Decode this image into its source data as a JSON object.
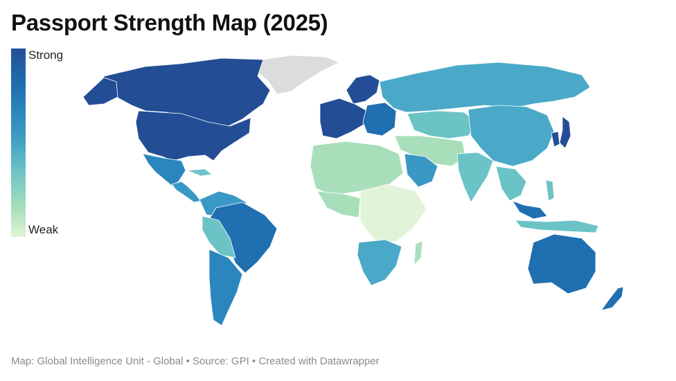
{
  "title": "Passport Strength Map (2025)",
  "legend": {
    "high_label": "Strong",
    "low_label": "Weak",
    "colors": [
      "#234e96",
      "#1f6fb1",
      "#3a98c4",
      "#6cc3c6",
      "#a8dfba",
      "#e2f4d8"
    ]
  },
  "footer": "Map: Global Intelligence Unit - Global • Source: GPI • Created with Datawrapper",
  "map": {
    "no_data_color": "#dcdcdc",
    "regions": [
      {
        "name": "Canada",
        "level": "strongest",
        "color": "#234e96"
      },
      {
        "name": "United States",
        "level": "strongest",
        "color": "#234e96"
      },
      {
        "name": "Greenland",
        "level": "no data",
        "color": "#dcdcdc"
      },
      {
        "name": "Mexico",
        "level": "strong",
        "color": "#2b86be"
      },
      {
        "name": "Central America",
        "level": "medium-strong",
        "color": "#3a98c4"
      },
      {
        "name": "Cuba",
        "level": "medium",
        "color": "#6cc3c6"
      },
      {
        "name": "Brazil",
        "level": "strong",
        "color": "#1f6fb1"
      },
      {
        "name": "Argentina / Chile",
        "level": "strong",
        "color": "#2b86be"
      },
      {
        "name": "Bolivia",
        "level": "medium",
        "color": "#6cc3c6"
      },
      {
        "name": "Western Europe",
        "level": "strongest",
        "color": "#234e96"
      },
      {
        "name": "Scandinavia",
        "level": "strongest",
        "color": "#234e96"
      },
      {
        "name": "Eastern Europe",
        "level": "strong",
        "color": "#1f6fb1"
      },
      {
        "name": "Russia",
        "level": "medium-strong",
        "color": "#4aa8c8"
      },
      {
        "name": "Central Asia",
        "level": "medium",
        "color": "#6cc3c6"
      },
      {
        "name": "China",
        "level": "medium-strong",
        "color": "#4aa8c8"
      },
      {
        "name": "Japan",
        "level": "strongest",
        "color": "#234e96"
      },
      {
        "name": "Korea",
        "level": "strongest",
        "color": "#234e96"
      },
      {
        "name": "Middle East",
        "level": "weak",
        "color": "#a8dfba"
      },
      {
        "name": "Saudi Arabia / UAE",
        "level": "medium-strong",
        "color": "#3a98c4"
      },
      {
        "name": "India",
        "level": "medium",
        "color": "#6cc3c6"
      },
      {
        "name": "Southeast Asia",
        "level": "medium",
        "color": "#6cc3c6"
      },
      {
        "name": "Malaysia",
        "level": "strong",
        "color": "#1f6fb1"
      },
      {
        "name": "Indonesia",
        "level": "medium",
        "color": "#6cc3c6"
      },
      {
        "name": "North Africa",
        "level": "weak",
        "color": "#a8dfba"
      },
      {
        "name": "Central Africa",
        "level": "weakest",
        "color": "#e2f4d8"
      },
      {
        "name": "Southern Africa",
        "level": "medium-strong",
        "color": "#4aa8c8"
      },
      {
        "name": "Madagascar",
        "level": "weak",
        "color": "#a8dfba"
      },
      {
        "name": "Australia",
        "level": "strong",
        "color": "#1f6fb1"
      },
      {
        "name": "New Zealand",
        "level": "strong",
        "color": "#1f6fb1"
      }
    ]
  }
}
